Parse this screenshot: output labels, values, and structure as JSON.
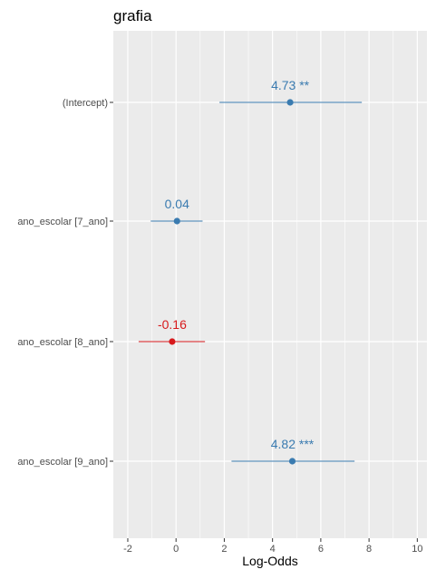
{
  "chart_data": {
    "type": "forest",
    "title": "grafia",
    "xlabel": "Log-Odds",
    "ylabel": "",
    "xlim": [
      -2.6,
      10.4
    ],
    "xticks": [
      -2,
      0,
      2,
      4,
      6,
      8,
      10
    ],
    "grid": true,
    "legend": "none",
    "colors": {
      "positive": "#3a7bb0",
      "negative": "#d7191c",
      "panel": "#ebebeb",
      "grid": "#ffffff"
    },
    "terms": [
      {
        "name": "(Intercept)",
        "estimate": 4.73,
        "ci_low": 1.8,
        "ci_high": 7.7,
        "label": "4.73 **",
        "color": "#3a7bb0"
      },
      {
        "name": "ano_escolar [7_ano]",
        "estimate": 0.04,
        "ci_low": -1.05,
        "ci_high": 1.1,
        "label": "0.04",
        "color": "#3a7bb0"
      },
      {
        "name": "ano_escolar [8_ano]",
        "estimate": -0.16,
        "ci_low": -1.55,
        "ci_high": 1.2,
        "label": "-0.16",
        "color": "#d7191c"
      },
      {
        "name": "ano_escolar [9_ano]",
        "estimate": 4.82,
        "ci_low": 2.3,
        "ci_high": 7.4,
        "label": "4.82 ***",
        "color": "#3a7bb0"
      }
    ]
  }
}
